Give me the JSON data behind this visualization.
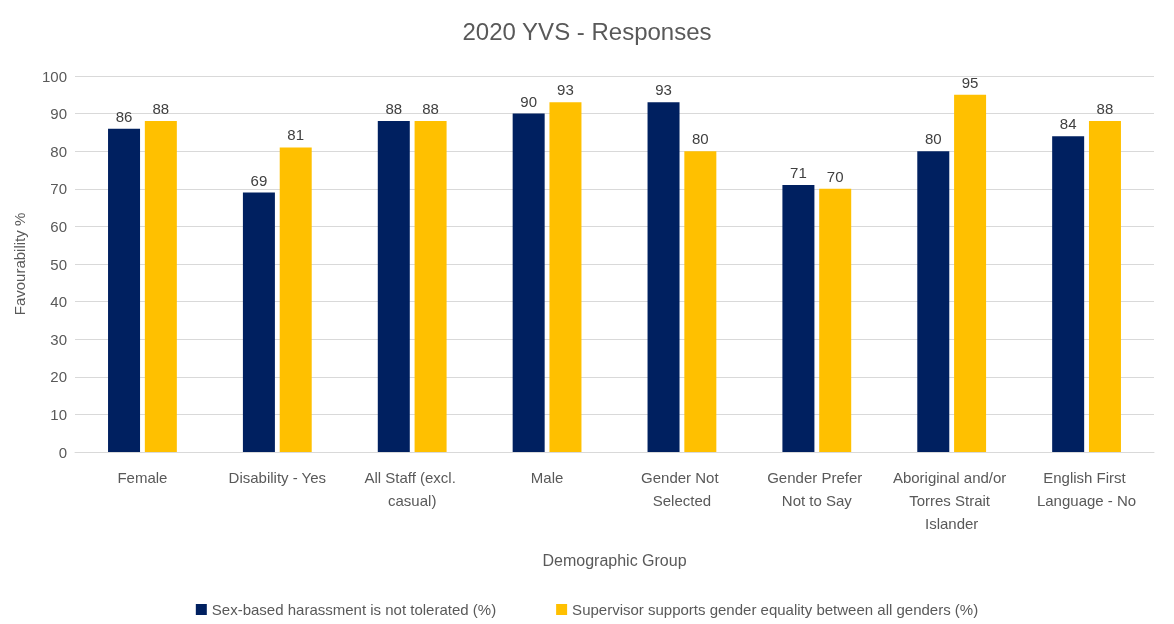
{
  "chart_data": {
    "type": "bar",
    "title": "2020 YVS - Responses",
    "xlabel": "Demographic Group",
    "ylabel": "Favourability %",
    "categories": [
      "Female",
      "Disability - Yes",
      "All Staff (excl. casual)",
      "Male",
      "Gender Not Selected",
      "Gender Prefer Not to Say",
      "Aboriginal and/or Torres Strait Islander",
      "English First Language - No"
    ],
    "series": [
      {
        "name": "Sex-based harassment is not tolerated (%)",
        "color": "#002060",
        "values": [
          86,
          69,
          88,
          90,
          93,
          71,
          80,
          84
        ]
      },
      {
        "name": "Supervisor supports gender equality between all genders (%)",
        "color": "#ffc000",
        "values": [
          88,
          81,
          88,
          93,
          80,
          70,
          95,
          88
        ]
      }
    ],
    "ylim": [
      0,
      100
    ],
    "yticks": [
      0,
      10,
      20,
      30,
      40,
      50,
      60,
      70,
      80,
      90,
      100
    ],
    "grid": "y",
    "legend": "bottom",
    "data_labels": true
  }
}
